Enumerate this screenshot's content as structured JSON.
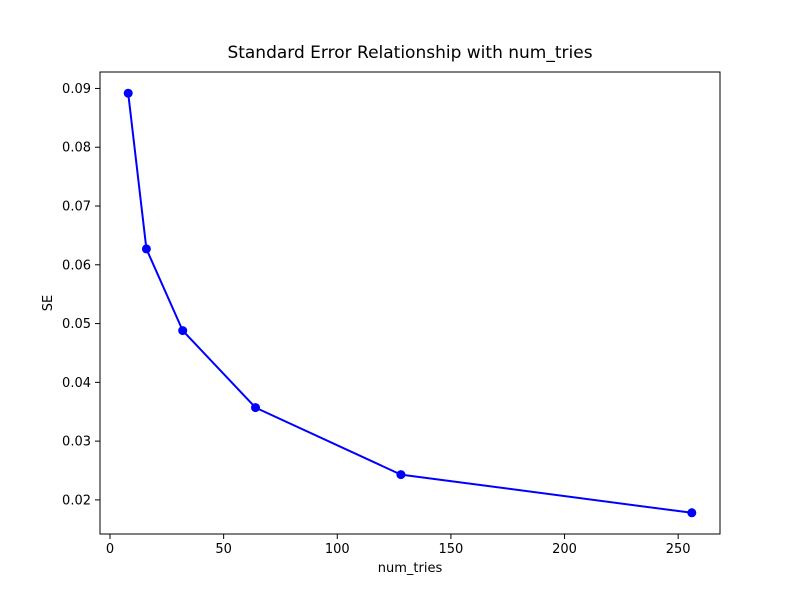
{
  "figure": {
    "background": "#ffffff",
    "frame_color": "#000000"
  },
  "chart_data": {
    "type": "line",
    "title": "Standard Error Relationship with num_tries",
    "xlabel": "num_tries",
    "ylabel": "SE",
    "x": [
      8,
      16,
      32,
      64,
      128,
      256
    ],
    "y": [
      0.0892,
      0.0627,
      0.0488,
      0.0357,
      0.0243,
      0.0178
    ],
    "series": [
      {
        "name": "SE",
        "x": [
          8,
          16,
          32,
          64,
          128,
          256
        ],
        "values": [
          0.0892,
          0.0627,
          0.0488,
          0.0357,
          0.0243,
          0.0178
        ]
      }
    ],
    "xlim": [
      -4.4,
      268.4
    ],
    "ylim": [
      0.0142,
      0.0928
    ],
    "xticks": [
      0,
      50,
      100,
      150,
      200,
      250
    ],
    "yticks": [
      0.02,
      0.03,
      0.04,
      0.05,
      0.06,
      0.07,
      0.08,
      0.09
    ],
    "ytick_decimals": 2,
    "line_color": "#0000ff",
    "marker": "o",
    "marker_size": 4.5,
    "grid": false,
    "legend": null
  }
}
